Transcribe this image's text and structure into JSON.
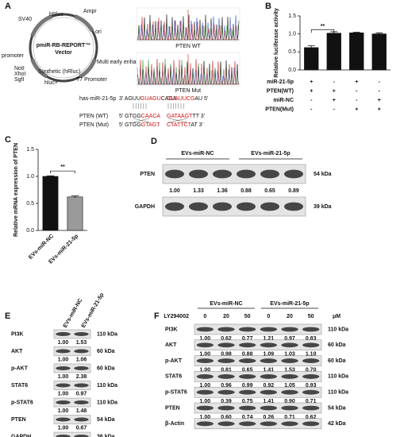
{
  "panel_labels": [
    "A",
    "B",
    "C",
    "D",
    "E",
    "F"
  ],
  "panel_a": {
    "plasmid": {
      "name": "pmiR-RB-REPORT™",
      "subtitle": "Vector",
      "features": [
        "Ampr",
        "ori",
        "hRluc",
        "SV40",
        "HSV-TK promoter",
        "Synthetic (hRluc)",
        "Multi early enhancer promoter",
        "T7 Promoter",
        "hluc+",
        "NotI",
        "XhoI",
        "SgfI"
      ]
    },
    "chromatograms": [
      "PTEN WT",
      "PTEN Mut"
    ],
    "sequences": [
      {
        "label": "has-miR-21-5p",
        "left": [
          {
            "text": "3' AGUU",
            "color": "#111"
          },
          {
            "text": "GUAGU",
            "color": "#d01010"
          },
          {
            "text": "CAGA",
            "color": "#111"
          }
        ],
        "right": [
          {
            "text": "CUAUUCG",
            "color": "#d01010"
          },
          {
            "text": "AU 5'",
            "color": "#111"
          }
        ]
      },
      {
        "label": "PTEN (WT)",
        "left": [
          {
            "text": "5' GTGG",
            "color": "#111"
          },
          {
            "text": "CAACA",
            "color": "#d01010"
          }
        ],
        "right": [
          {
            "text": "GATAAGT",
            "color": "#d01010"
          },
          {
            "text": "TT 3'",
            "color": "#111"
          }
        ]
      },
      {
        "label": "PTEN (Mut)",
        "left": [
          {
            "text": "5' GTGG",
            "color": "#111"
          },
          {
            "text": "GTAGT",
            "color": "#d01010"
          }
        ],
        "right": [
          {
            "text": "CTATTCT",
            "color": "#d01010"
          },
          {
            "text": "AT 3'",
            "color": "#111"
          }
        ]
      }
    ]
  },
  "chart_data": [
    {
      "type": "bar",
      "ylabel": "Relative luciferase activity",
      "values": [
        0.62,
        1.02,
        1.03,
        1.0
      ],
      "errors": [
        0.05,
        0.04,
        0.02,
        0.03
      ],
      "color": "#111111",
      "ylim": [
        0,
        1.5
      ],
      "yticks": [
        {
          "value": 0,
          "label": "0.0"
        },
        0.5,
        {
          "value": 1,
          "label": "1.0"
        },
        1.5
      ],
      "annotation": "**",
      "conditions": [
        {
          "label": "miR-21-5p",
          "signs": [
            "+",
            "-",
            "+",
            "-"
          ]
        },
        {
          "label": "PTEN(WT)",
          "signs": [
            "+",
            "+",
            "-",
            "-"
          ]
        },
        {
          "label": "miR-NC",
          "signs": [
            "-",
            "+",
            "-",
            "+"
          ]
        },
        {
          "label": "PTEN(Mut)",
          "signs": [
            "-",
            "-",
            "+",
            "+"
          ]
        }
      ]
    },
    {
      "type": "bar",
      "ylabel": "Relative mRNA expression of PTEN",
      "categories": [
        "EVs-miR-NC",
        "EVs-miR-21-5p"
      ],
      "values": [
        1.0,
        0.62
      ],
      "errors": [
        0.01,
        0.02
      ],
      "colors": [
        "#111111",
        "#9a9a9a"
      ],
      "ylim": [
        0,
        1.5
      ],
      "yticks": [
        {
          "value": 0,
          "label": "0.0"
        },
        0.5,
        {
          "value": 1,
          "label": "1.0"
        },
        1.5
      ],
      "annotation": "**"
    }
  ],
  "panel_d": {
    "groups": [
      "EVs-miR-NC",
      "EVs-miR-21-5p"
    ],
    "rows": [
      {
        "name": "PTEN",
        "size": "54 kDa",
        "ratios": [
          "1.00",
          "1.33",
          "1.36",
          "0.88",
          "0.65",
          "0.89"
        ]
      },
      {
        "name": "GAPDH",
        "size": "39 kDa"
      }
    ]
  },
  "panel_e": {
    "groups": [
      "EVs-miR-NC",
      "EVs-miR-21-5p"
    ],
    "rows": [
      {
        "name": "PI3K",
        "size": "110 kDa",
        "ratios": [
          "1.00",
          "1.53"
        ]
      },
      {
        "name": "AKT",
        "size": "60 kDa",
        "ratios": [
          "1.00",
          "1.06"
        ]
      },
      {
        "name": "p-AKT",
        "size": "60 kDa",
        "ratios": [
          "1.00",
          "2.38"
        ]
      },
      {
        "name": "STAT6",
        "size": "110 kDa",
        "ratios": [
          "1.00",
          "0.97"
        ]
      },
      {
        "name": "p-STAT6",
        "size": "110 kDa",
        "ratios": [
          "1.00",
          "1.48"
        ]
      },
      {
        "name": "PTEN",
        "size": "54 kDa",
        "ratios": [
          "1.00",
          "0.67"
        ]
      },
      {
        "name": "GAPDH",
        "size": "36 kDa"
      }
    ]
  },
  "panel_f": {
    "groups": [
      "EVs-miR-NC",
      "EVs-miR-21-5p"
    ],
    "treatment": "LY294002",
    "doses": [
      0,
      20,
      50,
      0,
      20,
      50
    ],
    "unit": "μM",
    "rows": [
      {
        "name": "PI3K",
        "size": "110 kDa",
        "ratios": [
          "1.00",
          "0.62",
          "0.77",
          "1.21",
          "0.97",
          "0.83"
        ]
      },
      {
        "name": "AKT",
        "size": "60 kDa",
        "ratios": [
          "1.00",
          "0.98",
          "0.88",
          "1.09",
          "1.03",
          "1.10"
        ]
      },
      {
        "name": "p-AKT",
        "size": "60 kDa",
        "ratios": [
          "1.00",
          "0.81",
          "0.65",
          "1.41",
          "1.53",
          "0.70"
        ]
      },
      {
        "name": "STAT6",
        "size": "110 kDa",
        "ratios": [
          "1.00",
          "0.96",
          "0.99",
          "0.92",
          "1.05",
          "0.93"
        ]
      },
      {
        "name": "p-STAT6",
        "size": "110 kDa",
        "ratios": [
          "1.00",
          "0.39",
          "0.75",
          "1.41",
          "0.90",
          "0.71"
        ]
      },
      {
        "name": "PTEN",
        "size": "54 kDa",
        "ratios": [
          "1.00",
          "0.60",
          "0.74",
          "0.26",
          "0.71",
          "0.62"
        ]
      },
      {
        "name": "β-Actin",
        "size": "42 kDa"
      }
    ]
  }
}
